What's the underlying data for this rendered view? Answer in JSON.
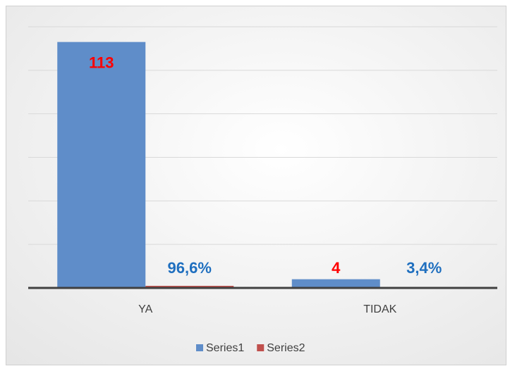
{
  "chart_data": {
    "type": "bar",
    "categories": [
      "YA",
      "TIDAK"
    ],
    "series": [
      {
        "name": "Series1",
        "color": "#5f8dc9",
        "label_color": "#ff0000",
        "values": [
          113,
          4
        ]
      },
      {
        "name": "Series2",
        "color": "#c0504d",
        "label_color": "#1f6fbf",
        "values": [
          0.966,
          0.034
        ],
        "value_labels": [
          "96,6%",
          "3,4%"
        ]
      }
    ],
    "ylim": [
      0,
      120
    ],
    "yticks": [
      0,
      20,
      40,
      60,
      80,
      100,
      120
    ],
    "grid": true,
    "legend": "bottom"
  }
}
